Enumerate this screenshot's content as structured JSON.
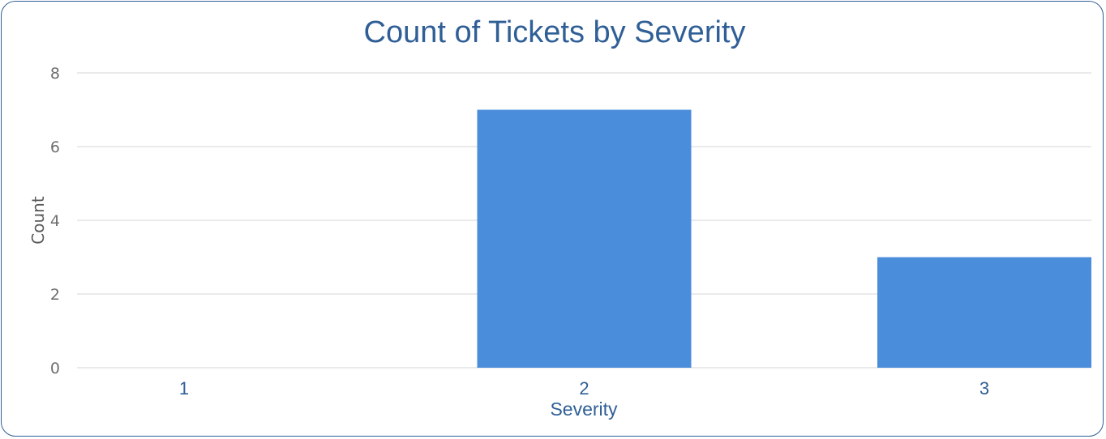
{
  "colors": {
    "title": "#2f5f96",
    "axis_label": "#2f5f96",
    "tick_y": "#6e6e6e",
    "tick_x": "#2f5f96",
    "ylabel": "#5a5a5a",
    "grid": "#e3e3e3",
    "bar": "#4a8edb",
    "frame": "#2f5f96"
  },
  "chart_data": {
    "type": "bar",
    "title": "Count of Tickets by Severity",
    "xlabel": "Severity",
    "ylabel": "Count",
    "categories": [
      "1",
      "2",
      "3"
    ],
    "values": [
      0,
      7,
      3
    ],
    "ylim": [
      0,
      8
    ],
    "yticks": [
      "0",
      "2",
      "4",
      "6",
      "8"
    ],
    "grid": true,
    "legend": "none"
  }
}
